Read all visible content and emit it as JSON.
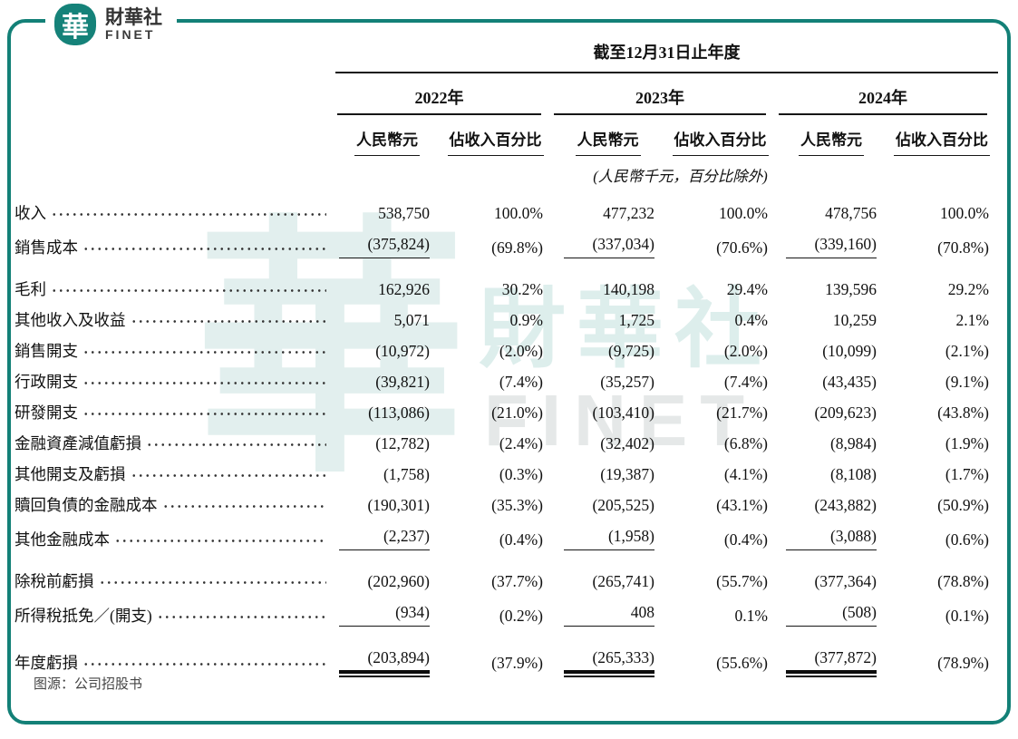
{
  "brand": {
    "logo_char": "華",
    "name_cn": "財華社",
    "name_en": "FINET"
  },
  "watermark": {
    "char": "華",
    "text_cn": "財華社",
    "text_en": "FINET"
  },
  "colors": {
    "accent": "#138077",
    "text": "#111111"
  },
  "source_note": "图源：公司招股书",
  "header": {
    "span_title": "截至12月31日止年度",
    "years": [
      "2022年",
      "2023年",
      "2024年"
    ],
    "sub_money": "人民幣元",
    "sub_pct": "佔收入百分比",
    "note": "(人民幣千元，百分比除外)"
  },
  "chart_data": {
    "type": "table",
    "title": "截至12月31日止年度",
    "unit_note": "(人民幣千元，百分比除外)",
    "column_groups": [
      "2022年",
      "2023年",
      "2024年"
    ],
    "sub_columns": [
      "人民幣元",
      "佔收入百分比"
    ],
    "rows": [
      {
        "label": "收入",
        "v": [
          "538,750",
          "100.0%",
          "477,232",
          "100.0%",
          "478,756",
          "100.0%"
        ],
        "underline": "none",
        "gap_before": false
      },
      {
        "label": "銷售成本",
        "v": [
          "(375,824)",
          "(69.8%)",
          "(337,034)",
          "(70.6%)",
          "(339,160)",
          "(70.8%)"
        ],
        "underline": "single",
        "gap_before": false
      },
      {
        "label": "毛利",
        "v": [
          "162,926",
          "30.2%",
          "140,198",
          "29.4%",
          "139,596",
          "29.2%"
        ],
        "underline": "none",
        "gap_before": true
      },
      {
        "label": "其他收入及收益",
        "v": [
          "5,071",
          "0.9%",
          "1,725",
          "0.4%",
          "10,259",
          "2.1%"
        ],
        "underline": "none",
        "gap_before": false
      },
      {
        "label": "銷售開支",
        "v": [
          "(10,972)",
          "(2.0%)",
          "(9,725)",
          "(2.0%)",
          "(10,099)",
          "(2.1%)"
        ],
        "underline": "none",
        "gap_before": false
      },
      {
        "label": "行政開支",
        "v": [
          "(39,821)",
          "(7.4%)",
          "(35,257)",
          "(7.4%)",
          "(43,435)",
          "(9.1%)"
        ],
        "underline": "none",
        "gap_before": false
      },
      {
        "label": "研發開支",
        "v": [
          "(113,086)",
          "(21.0%)",
          "(103,410)",
          "(21.7%)",
          "(209,623)",
          "(43.8%)"
        ],
        "underline": "none",
        "gap_before": false
      },
      {
        "label": "金融資產減值虧損",
        "v": [
          "(12,782)",
          "(2.4%)",
          "(32,402)",
          "(6.8%)",
          "(8,984)",
          "(1.9%)"
        ],
        "underline": "none",
        "gap_before": false
      },
      {
        "label": "其他開支及虧損",
        "v": [
          "(1,758)",
          "(0.3%)",
          "(19,387)",
          "(4.1%)",
          "(8,108)",
          "(1.7%)"
        ],
        "underline": "none",
        "gap_before": false
      },
      {
        "label": "贖回負債的金融成本",
        "v": [
          "(190,301)",
          "(35.3%)",
          "(205,525)",
          "(43.1%)",
          "(243,882)",
          "(50.9%)"
        ],
        "underline": "none",
        "gap_before": false
      },
      {
        "label": "其他金融成本",
        "v": [
          "(2,237)",
          "(0.4%)",
          "(1,958)",
          "(0.4%)",
          "(3,088)",
          "(0.6%)"
        ],
        "underline": "single",
        "gap_before": false
      },
      {
        "label": "除稅前虧損",
        "v": [
          "(202,960)",
          "(37.7%)",
          "(265,741)",
          "(55.7%)",
          "(377,364)",
          "(78.8%)"
        ],
        "underline": "none",
        "gap_before": true
      },
      {
        "label": "所得稅抵免／(開支)",
        "v": [
          "(934)",
          "(0.2%)",
          "408",
          "0.1%",
          "(508)",
          "(0.1%)"
        ],
        "underline": "single",
        "gap_before": false
      },
      {
        "label": "年度虧損",
        "v": [
          "(203,894)",
          "(37.9%)",
          "(265,333)",
          "(55.6%)",
          "(377,872)",
          "(78.9%)"
        ],
        "underline": "double",
        "gap_before": true
      }
    ]
  }
}
